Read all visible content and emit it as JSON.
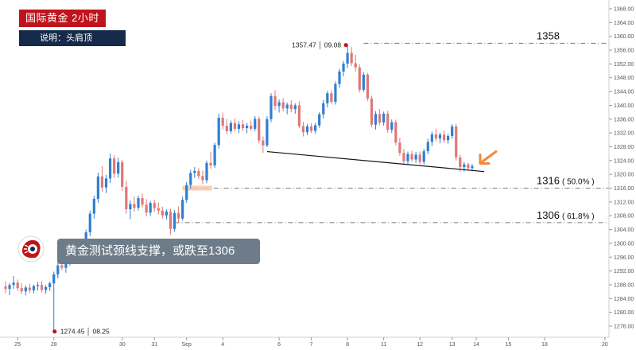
{
  "header": {
    "title": "国际黄金  2小时",
    "subtitle": "说明：头肩顶"
  },
  "callout": {
    "text": "黄金测试颈线支撑，或跌至1306"
  },
  "colors": {
    "up": "#2f7fd0",
    "down": "#e07878",
    "title_bg": "#c0141c",
    "subtitle_bg": "#152a4a",
    "callout_bg": "#6d7c88",
    "arrow": "#f08a3c",
    "highlight": "#f6c9a8"
  },
  "chart_data": {
    "type": "candlestick",
    "title": "国际黄金  2小时",
    "y_axis": {
      "side": "right",
      "range": [
        1274,
        1370
      ],
      "ticks": [
        1276,
        1280,
        1284,
        1288,
        1292,
        1296,
        1300,
        1304,
        1308,
        1312,
        1316,
        1320,
        1324,
        1328,
        1332,
        1336,
        1340,
        1344,
        1348,
        1352,
        1356,
        1360,
        1364,
        1368
      ]
    },
    "x_axis": {
      "ticks": [
        "25",
        "28",
        "30",
        "31",
        "Sep",
        "4",
        "6",
        "7",
        "8",
        "11",
        "12",
        "13",
        "14",
        "15",
        "18",
        "20"
      ]
    },
    "grid": false,
    "candles": [
      {
        "t": 1,
        "o": 1287.5,
        "h": 1289.0,
        "l": 1285.5,
        "c": 1286.8
      },
      {
        "t": 2,
        "o": 1286.8,
        "h": 1288.5,
        "l": 1285.0,
        "c": 1287.9
      },
      {
        "t": 3,
        "o": 1287.9,
        "h": 1290.5,
        "l": 1286.8,
        "c": 1288.6
      },
      {
        "t": 4,
        "o": 1288.6,
        "h": 1289.5,
        "l": 1286.2,
        "c": 1287.0
      },
      {
        "t": 5,
        "o": 1287.0,
        "h": 1288.4,
        "l": 1285.3,
        "c": 1286.1
      },
      {
        "t": 6,
        "o": 1286.1,
        "h": 1287.8,
        "l": 1284.9,
        "c": 1287.2
      },
      {
        "t": 7,
        "o": 1287.2,
        "h": 1288.3,
        "l": 1285.6,
        "c": 1286.4
      },
      {
        "t": 8,
        "o": 1286.4,
        "h": 1288.0,
        "l": 1285.5,
        "c": 1287.6
      },
      {
        "t": 9,
        "o": 1287.6,
        "h": 1288.8,
        "l": 1286.3,
        "c": 1287.9
      },
      {
        "t": 10,
        "o": 1287.9,
        "h": 1289.1,
        "l": 1285.8,
        "c": 1286.5
      },
      {
        "t": 11,
        "o": 1286.5,
        "h": 1287.9,
        "l": 1285.4,
        "c": 1287.3
      },
      {
        "t": 12,
        "o": 1287.3,
        "h": 1288.9,
        "l": 1286.2,
        "c": 1288.4
      },
      {
        "t": 13,
        "o": 1288.4,
        "h": 1291.8,
        "l": 1274.45,
        "c": 1291.0
      },
      {
        "t": 14,
        "o": 1291.0,
        "h": 1294.5,
        "l": 1289.8,
        "c": 1293.6
      },
      {
        "t": 15,
        "o": 1293.6,
        "h": 1296.0,
        "l": 1292.2,
        "c": 1292.9
      },
      {
        "t": 16,
        "o": 1292.9,
        "h": 1295.1,
        "l": 1291.5,
        "c": 1294.7
      },
      {
        "t": 17,
        "o": 1294.7,
        "h": 1297.3,
        "l": 1293.5,
        "c": 1296.4
      },
      {
        "t": 18,
        "o": 1296.4,
        "h": 1298.0,
        "l": 1294.6,
        "c": 1295.5
      },
      {
        "t": 19,
        "o": 1295.5,
        "h": 1297.6,
        "l": 1294.3,
        "c": 1297.0
      },
      {
        "t": 20,
        "o": 1297.0,
        "h": 1299.4,
        "l": 1295.9,
        "c": 1298.5
      },
      {
        "t": 21,
        "o": 1298.5,
        "h": 1304.0,
        "l": 1297.6,
        "c": 1303.2
      },
      {
        "t": 22,
        "o": 1303.2,
        "h": 1309.5,
        "l": 1302.1,
        "c": 1308.6
      },
      {
        "t": 23,
        "o": 1308.6,
        "h": 1313.8,
        "l": 1307.2,
        "c": 1312.9
      },
      {
        "t": 24,
        "o": 1312.9,
        "h": 1320.5,
        "l": 1311.8,
        "c": 1319.4
      },
      {
        "t": 25,
        "o": 1319.4,
        "h": 1322.4,
        "l": 1315.0,
        "c": 1316.2
      },
      {
        "t": 26,
        "o": 1316.2,
        "h": 1319.8,
        "l": 1314.6,
        "c": 1318.8
      },
      {
        "t": 27,
        "o": 1318.8,
        "h": 1326.0,
        "l": 1317.5,
        "c": 1324.6
      },
      {
        "t": 28,
        "o": 1324.6,
        "h": 1325.6,
        "l": 1318.9,
        "c": 1320.2
      },
      {
        "t": 29,
        "o": 1320.2,
        "h": 1324.8,
        "l": 1319.0,
        "c": 1323.5
      },
      {
        "t": 30,
        "o": 1323.5,
        "h": 1324.2,
        "l": 1315.2,
        "c": 1316.4
      },
      {
        "t": 31,
        "o": 1316.4,
        "h": 1318.1,
        "l": 1308.6,
        "c": 1309.9
      },
      {
        "t": 32,
        "o": 1309.9,
        "h": 1312.4,
        "l": 1307.0,
        "c": 1311.4
      },
      {
        "t": 33,
        "o": 1311.4,
        "h": 1313.5,
        "l": 1309.2,
        "c": 1310.3
      },
      {
        "t": 34,
        "o": 1310.3,
        "h": 1313.9,
        "l": 1309.5,
        "c": 1313.1
      },
      {
        "t": 35,
        "o": 1313.1,
        "h": 1314.4,
        "l": 1310.4,
        "c": 1311.2
      },
      {
        "t": 36,
        "o": 1311.2,
        "h": 1312.8,
        "l": 1307.8,
        "c": 1308.9
      },
      {
        "t": 37,
        "o": 1308.9,
        "h": 1312.2,
        "l": 1308.0,
        "c": 1311.7
      },
      {
        "t": 38,
        "o": 1311.7,
        "h": 1312.6,
        "l": 1309.1,
        "c": 1310.2
      },
      {
        "t": 39,
        "o": 1310.2,
        "h": 1311.8,
        "l": 1308.4,
        "c": 1309.5
      },
      {
        "t": 40,
        "o": 1309.5,
        "h": 1310.6,
        "l": 1307.2,
        "c": 1308.1
      },
      {
        "t": 41,
        "o": 1308.1,
        "h": 1309.8,
        "l": 1306.9,
        "c": 1309.2
      },
      {
        "t": 42,
        "o": 1309.2,
        "h": 1310.0,
        "l": 1302.5,
        "c": 1304.2
      },
      {
        "t": 43,
        "o": 1304.2,
        "h": 1309.6,
        "l": 1303.4,
        "c": 1308.8
      },
      {
        "t": 44,
        "o": 1308.8,
        "h": 1310.7,
        "l": 1305.9,
        "c": 1307.2
      },
      {
        "t": 45,
        "o": 1307.2,
        "h": 1313.5,
        "l": 1306.6,
        "c": 1312.6
      },
      {
        "t": 46,
        "o": 1312.6,
        "h": 1317.8,
        "l": 1311.7,
        "c": 1316.9
      },
      {
        "t": 47,
        "o": 1316.9,
        "h": 1321.3,
        "l": 1315.8,
        "c": 1320.4
      },
      {
        "t": 48,
        "o": 1320.4,
        "h": 1322.1,
        "l": 1318.9,
        "c": 1321.0
      },
      {
        "t": 49,
        "o": 1321.0,
        "h": 1321.8,
        "l": 1318.6,
        "c": 1319.5
      },
      {
        "t": 50,
        "o": 1319.5,
        "h": 1321.1,
        "l": 1317.2,
        "c": 1318.3
      },
      {
        "t": 51,
        "o": 1318.3,
        "h": 1324.0,
        "l": 1317.4,
        "c": 1323.3
      },
      {
        "t": 52,
        "o": 1323.3,
        "h": 1326.5,
        "l": 1321.6,
        "c": 1322.6
      },
      {
        "t": 53,
        "o": 1322.6,
        "h": 1329.2,
        "l": 1321.9,
        "c": 1328.5
      },
      {
        "t": 54,
        "o": 1328.5,
        "h": 1337.6,
        "l": 1327.5,
        "c": 1336.4
      },
      {
        "t": 55,
        "o": 1336.4,
        "h": 1337.9,
        "l": 1333.0,
        "c": 1334.1
      },
      {
        "t": 56,
        "o": 1334.1,
        "h": 1336.0,
        "l": 1331.6,
        "c": 1332.5
      },
      {
        "t": 57,
        "o": 1332.5,
        "h": 1335.6,
        "l": 1331.8,
        "c": 1334.9
      },
      {
        "t": 58,
        "o": 1334.9,
        "h": 1336.2,
        "l": 1332.4,
        "c": 1333.2
      },
      {
        "t": 59,
        "o": 1333.2,
        "h": 1335.4,
        "l": 1332.0,
        "c": 1334.5
      },
      {
        "t": 60,
        "o": 1334.5,
        "h": 1335.8,
        "l": 1332.5,
        "c": 1333.4
      },
      {
        "t": 61,
        "o": 1333.4,
        "h": 1334.9,
        "l": 1331.9,
        "c": 1334.1
      },
      {
        "t": 62,
        "o": 1334.1,
        "h": 1335.6,
        "l": 1332.7,
        "c": 1333.2
      },
      {
        "t": 63,
        "o": 1333.2,
        "h": 1336.9,
        "l": 1332.5,
        "c": 1336.1
      },
      {
        "t": 64,
        "o": 1336.1,
        "h": 1336.8,
        "l": 1329.0,
        "c": 1329.8
      },
      {
        "t": 65,
        "o": 1329.8,
        "h": 1331.0,
        "l": 1326.2,
        "c": 1328.4
      },
      {
        "t": 66,
        "o": 1328.4,
        "h": 1336.8,
        "l": 1327.9,
        "c": 1336.0
      },
      {
        "t": 67,
        "o": 1336.0,
        "h": 1343.5,
        "l": 1335.1,
        "c": 1342.7
      },
      {
        "t": 68,
        "o": 1342.7,
        "h": 1344.4,
        "l": 1338.6,
        "c": 1339.8
      },
      {
        "t": 69,
        "o": 1339.8,
        "h": 1341.7,
        "l": 1337.9,
        "c": 1340.9
      },
      {
        "t": 70,
        "o": 1340.9,
        "h": 1342.1,
        "l": 1338.2,
        "c": 1339.1
      },
      {
        "t": 71,
        "o": 1339.1,
        "h": 1340.8,
        "l": 1337.4,
        "c": 1340.2
      },
      {
        "t": 72,
        "o": 1340.2,
        "h": 1341.5,
        "l": 1338.0,
        "c": 1338.9
      },
      {
        "t": 73,
        "o": 1338.9,
        "h": 1340.6,
        "l": 1337.6,
        "c": 1340.0
      },
      {
        "t": 74,
        "o": 1340.0,
        "h": 1341.2,
        "l": 1333.4,
        "c": 1334.0
      },
      {
        "t": 75,
        "o": 1334.0,
        "h": 1335.2,
        "l": 1331.0,
        "c": 1332.2
      },
      {
        "t": 76,
        "o": 1332.2,
        "h": 1334.6,
        "l": 1331.4,
        "c": 1333.9
      },
      {
        "t": 77,
        "o": 1333.9,
        "h": 1334.8,
        "l": 1332.0,
        "c": 1332.6
      },
      {
        "t": 78,
        "o": 1332.6,
        "h": 1334.9,
        "l": 1331.8,
        "c": 1334.2
      },
      {
        "t": 79,
        "o": 1334.2,
        "h": 1338.0,
        "l": 1333.5,
        "c": 1337.4
      },
      {
        "t": 80,
        "o": 1337.4,
        "h": 1341.6,
        "l": 1336.2,
        "c": 1340.6
      },
      {
        "t": 81,
        "o": 1340.6,
        "h": 1344.2,
        "l": 1339.4,
        "c": 1343.5
      },
      {
        "t": 82,
        "o": 1343.5,
        "h": 1344.4,
        "l": 1340.4,
        "c": 1341.0
      },
      {
        "t": 83,
        "o": 1341.0,
        "h": 1346.9,
        "l": 1340.2,
        "c": 1346.2
      },
      {
        "t": 84,
        "o": 1346.2,
        "h": 1350.6,
        "l": 1345.1,
        "c": 1349.8
      },
      {
        "t": 85,
        "o": 1349.8,
        "h": 1352.9,
        "l": 1348.4,
        "c": 1352.1
      },
      {
        "t": 86,
        "o": 1352.1,
        "h": 1357.47,
        "l": 1350.8,
        "c": 1355.2
      },
      {
        "t": 87,
        "o": 1355.2,
        "h": 1356.9,
        "l": 1351.4,
        "c": 1352.2
      },
      {
        "t": 88,
        "o": 1352.2,
        "h": 1354.7,
        "l": 1349.8,
        "c": 1351.0
      },
      {
        "t": 89,
        "o": 1351.0,
        "h": 1351.9,
        "l": 1343.7,
        "c": 1344.5
      },
      {
        "t": 90,
        "o": 1344.5,
        "h": 1349.6,
        "l": 1343.9,
        "c": 1348.9
      },
      {
        "t": 91,
        "o": 1348.9,
        "h": 1349.4,
        "l": 1341.3,
        "c": 1342.0
      },
      {
        "t": 92,
        "o": 1342.0,
        "h": 1342.8,
        "l": 1333.6,
        "c": 1334.4
      },
      {
        "t": 93,
        "o": 1334.4,
        "h": 1338.3,
        "l": 1333.0,
        "c": 1337.5
      },
      {
        "t": 94,
        "o": 1337.5,
        "h": 1338.9,
        "l": 1334.2,
        "c": 1335.0
      },
      {
        "t": 95,
        "o": 1335.0,
        "h": 1338.2,
        "l": 1334.1,
        "c": 1337.6
      },
      {
        "t": 96,
        "o": 1337.6,
        "h": 1338.4,
        "l": 1332.1,
        "c": 1332.9
      },
      {
        "t": 97,
        "o": 1332.9,
        "h": 1335.9,
        "l": 1332.0,
        "c": 1335.1
      },
      {
        "t": 98,
        "o": 1335.1,
        "h": 1335.8,
        "l": 1328.4,
        "c": 1329.2
      },
      {
        "t": 99,
        "o": 1329.2,
        "h": 1330.6,
        "l": 1325.4,
        "c": 1326.2
      },
      {
        "t": 100,
        "o": 1326.2,
        "h": 1327.4,
        "l": 1323.1,
        "c": 1323.8
      },
      {
        "t": 101,
        "o": 1323.8,
        "h": 1326.6,
        "l": 1323.0,
        "c": 1325.9
      },
      {
        "t": 102,
        "o": 1325.9,
        "h": 1326.8,
        "l": 1323.6,
        "c": 1324.3
      },
      {
        "t": 103,
        "o": 1324.3,
        "h": 1326.5,
        "l": 1323.3,
        "c": 1325.7
      },
      {
        "t": 104,
        "o": 1325.7,
        "h": 1326.6,
        "l": 1323.0,
        "c": 1323.6
      },
      {
        "t": 105,
        "o": 1323.6,
        "h": 1327.4,
        "l": 1322.9,
        "c": 1326.7
      },
      {
        "t": 106,
        "o": 1326.7,
        "h": 1330.3,
        "l": 1325.8,
        "c": 1329.4
      },
      {
        "t": 107,
        "o": 1329.4,
        "h": 1332.4,
        "l": 1328.2,
        "c": 1331.6
      },
      {
        "t": 108,
        "o": 1331.6,
        "h": 1333.3,
        "l": 1329.6,
        "c": 1330.4
      },
      {
        "t": 109,
        "o": 1330.4,
        "h": 1332.1,
        "l": 1329.0,
        "c": 1331.5
      },
      {
        "t": 110,
        "o": 1331.5,
        "h": 1332.7,
        "l": 1329.1,
        "c": 1329.9
      },
      {
        "t": 111,
        "o": 1329.9,
        "h": 1331.8,
        "l": 1328.9,
        "c": 1331.1
      },
      {
        "t": 112,
        "o": 1331.1,
        "h": 1334.6,
        "l": 1330.3,
        "c": 1333.9
      },
      {
        "t": 113,
        "o": 1333.9,
        "h": 1334.7,
        "l": 1324.0,
        "c": 1324.9
      },
      {
        "t": 114,
        "o": 1324.9,
        "h": 1325.7,
        "l": 1320.8,
        "c": 1322.1
      },
      {
        "t": 115,
        "o": 1322.1,
        "h": 1323.6,
        "l": 1320.8,
        "c": 1322.9
      },
      {
        "t": 116,
        "o": 1322.9,
        "h": 1323.4,
        "l": 1321.1,
        "c": 1321.8
      },
      {
        "t": 117,
        "o": 1321.8,
        "h": 1323.0,
        "l": 1320.9,
        "c": 1322.4
      }
    ],
    "annotations": {
      "high": {
        "value": 1357.47,
        "label": "1357.47 │ 09.08"
      },
      "low": {
        "value": 1274.45,
        "label": "1274.45 │ 08.25"
      },
      "levels": [
        {
          "price": 1358,
          "label": "1358",
          "pct": ""
        },
        {
          "price": 1316,
          "label": "1316",
          "pct": "( 50.0% )"
        },
        {
          "price": 1306,
          "label": "1306",
          "pct": "( 61.8% )"
        }
      ],
      "neckline": {
        "from": {
          "t": 66,
          "price": 1326.6
        },
        "to": {
          "t": 120,
          "price": 1320.8
        }
      }
    }
  }
}
